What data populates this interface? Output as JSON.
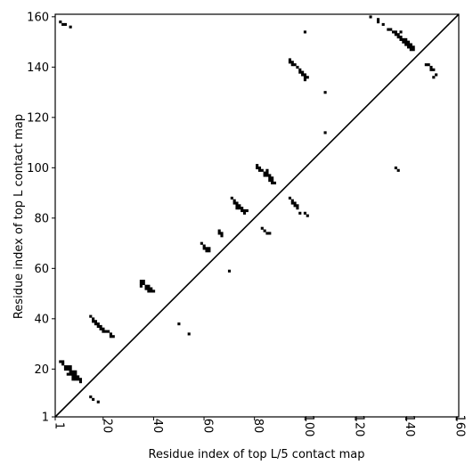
{
  "chart_data": {
    "type": "heatmap",
    "title": "",
    "xlabel": "Residue index of top L/5 contact map",
    "ylabel": "Residue index of top L contact map",
    "xlim": [
      1,
      161
    ],
    "ylim": [
      1,
      161
    ],
    "x_ticks": [
      1,
      20,
      40,
      60,
      80,
      100,
      120,
      140,
      160
    ],
    "y_ticks": [
      1,
      20,
      40,
      60,
      80,
      100,
      120,
      140,
      160
    ],
    "x_tick_labels": [
      "1",
      "20",
      "40",
      "60",
      "80",
      "100",
      "120",
      "140",
      "160"
    ],
    "y_tick_labels": [
      "1",
      "20",
      "40",
      "60",
      "80",
      "100",
      "120",
      "140",
      "160"
    ],
    "diagonal": true,
    "grid": false,
    "colors": {
      "contact": "#000000",
      "background": "#ffffff",
      "axis": "#000000"
    },
    "note_regions": "upper-left triangle = top L contacts (x = i, y = j, j > i); lower-right triangle = top L/5 contacts",
    "contacts": [
      [
        3,
        158
      ],
      [
        4,
        157
      ],
      [
        5,
        157
      ],
      [
        7,
        156
      ],
      [
        3,
        23
      ],
      [
        4,
        23
      ],
      [
        4,
        22
      ],
      [
        5,
        21
      ],
      [
        6,
        21
      ],
      [
        7,
        21
      ],
      [
        5,
        20
      ],
      [
        6,
        20
      ],
      [
        7,
        20
      ],
      [
        8,
        19
      ],
      [
        9,
        19
      ],
      [
        7,
        19
      ],
      [
        6,
        18
      ],
      [
        7,
        18
      ],
      [
        8,
        18
      ],
      [
        9,
        18
      ],
      [
        8,
        17
      ],
      [
        9,
        17
      ],
      [
        10,
        17
      ],
      [
        8,
        16
      ],
      [
        9,
        16
      ],
      [
        10,
        16
      ],
      [
        11,
        16
      ],
      [
        11,
        15
      ],
      [
        15,
        9
      ],
      [
        16,
        8
      ],
      [
        18,
        7
      ],
      [
        15,
        41
      ],
      [
        16,
        40
      ],
      [
        16,
        39
      ],
      [
        17,
        39
      ],
      [
        18,
        38
      ],
      [
        17,
        38
      ],
      [
        18,
        37
      ],
      [
        19,
        37
      ],
      [
        20,
        36
      ],
      [
        19,
        36
      ],
      [
        21,
        35
      ],
      [
        20,
        35
      ],
      [
        22,
        35
      ],
      [
        23,
        34
      ],
      [
        23,
        33
      ],
      [
        24,
        33
      ],
      [
        35,
        55
      ],
      [
        36,
        55
      ],
      [
        35,
        54
      ],
      [
        36,
        54
      ],
      [
        35,
        53
      ],
      [
        37,
        53
      ],
      [
        38,
        53
      ],
      [
        37,
        52
      ],
      [
        38,
        52
      ],
      [
        39,
        52
      ],
      [
        38,
        51
      ],
      [
        39,
        51
      ],
      [
        40,
        51
      ],
      [
        50,
        38
      ],
      [
        54,
        34
      ],
      [
        59,
        70
      ],
      [
        60,
        69
      ],
      [
        60,
        68
      ],
      [
        61,
        68
      ],
      [
        62,
        68
      ],
      [
        61,
        67
      ],
      [
        62,
        67
      ],
      [
        66,
        75
      ],
      [
        66,
        74
      ],
      [
        67,
        74
      ],
      [
        67,
        73
      ],
      [
        70,
        59
      ],
      [
        71,
        88
      ],
      [
        72,
        87
      ],
      [
        72,
        86
      ],
      [
        73,
        86
      ],
      [
        73,
        85
      ],
      [
        74,
        85
      ],
      [
        73,
        84
      ],
      [
        74,
        84
      ],
      [
        75,
        84
      ],
      [
        75,
        83
      ],
      [
        76,
        83
      ],
      [
        77,
        83
      ],
      [
        76,
        82
      ],
      [
        81,
        101
      ],
      [
        81,
        100
      ],
      [
        82,
        100
      ],
      [
        82,
        99
      ],
      [
        83,
        99
      ],
      [
        84,
        98
      ],
      [
        85,
        99
      ],
      [
        85,
        98
      ],
      [
        84,
        97
      ],
      [
        85,
        97
      ],
      [
        86,
        97
      ],
      [
        86,
        96
      ],
      [
        87,
        96
      ],
      [
        86,
        95
      ],
      [
        87,
        95
      ],
      [
        88,
        94
      ],
      [
        87,
        94
      ],
      [
        83,
        76
      ],
      [
        84,
        75
      ],
      [
        85,
        74
      ],
      [
        86,
        74
      ],
      [
        94,
        88
      ],
      [
        95,
        87
      ],
      [
        95,
        86
      ],
      [
        96,
        86
      ],
      [
        96,
        85
      ],
      [
        97,
        85
      ],
      [
        97,
        84
      ],
      [
        98,
        82
      ],
      [
        100,
        82
      ],
      [
        101,
        81
      ],
      [
        94,
        143
      ],
      [
        95,
        142
      ],
      [
        94,
        142
      ],
      [
        95,
        141
      ],
      [
        96,
        141
      ],
      [
        97,
        140
      ],
      [
        98,
        139
      ],
      [
        99,
        138
      ],
      [
        98,
        138
      ],
      [
        99,
        137
      ],
      [
        100,
        137
      ],
      [
        100,
        136
      ],
      [
        101,
        136
      ],
      [
        100,
        135
      ],
      [
        100,
        154
      ],
      [
        108,
        130
      ],
      [
        108,
        114
      ],
      [
        126,
        160
      ],
      [
        129,
        159
      ],
      [
        129,
        158
      ],
      [
        131,
        157
      ],
      [
        133,
        155
      ],
      [
        134,
        155
      ],
      [
        135,
        154
      ],
      [
        136,
        154
      ],
      [
        136,
        153
      ],
      [
        137,
        153
      ],
      [
        138,
        154
      ],
      [
        137,
        152
      ],
      [
        138,
        152
      ],
      [
        139,
        151
      ],
      [
        138,
        151
      ],
      [
        140,
        151
      ],
      [
        139,
        150
      ],
      [
        140,
        150
      ],
      [
        141,
        150
      ],
      [
        140,
        149
      ],
      [
        141,
        149
      ],
      [
        142,
        149
      ],
      [
        141,
        148
      ],
      [
        142,
        148
      ],
      [
        143,
        148
      ],
      [
        142,
        147
      ],
      [
        143,
        147
      ],
      [
        136,
        100
      ],
      [
        137,
        99
      ],
      [
        148,
        141
      ],
      [
        149,
        141
      ],
      [
        150,
        140
      ],
      [
        150,
        139
      ],
      [
        151,
        139
      ],
      [
        152,
        137
      ],
      [
        151,
        136
      ]
    ]
  }
}
